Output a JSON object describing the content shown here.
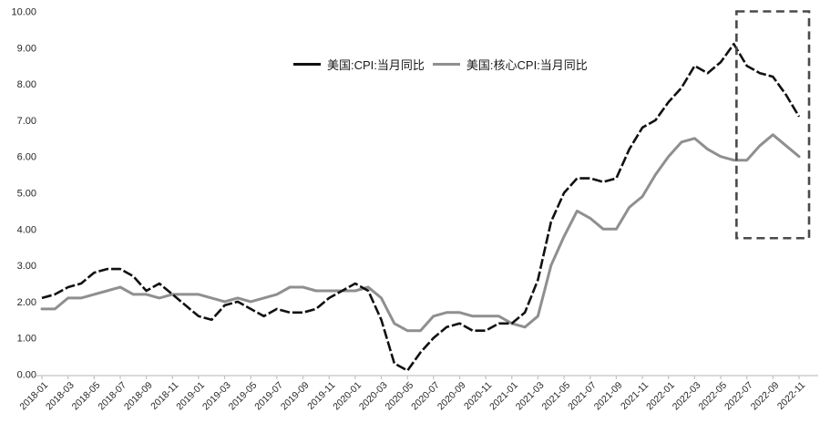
{
  "chart_data": {
    "type": "line",
    "title": "",
    "xlabel": "",
    "ylabel": "",
    "ylim": [
      0,
      10
    ],
    "grid": false,
    "legend_position": "top-center",
    "y_tick_labels": [
      "0.00",
      "1.00",
      "2.00",
      "3.00",
      "4.00",
      "5.00",
      "6.00",
      "7.00",
      "8.00",
      "9.00",
      "10.00"
    ],
    "x_tick_every": 2,
    "x": [
      "2018-01",
      "2018-02",
      "2018-03",
      "2018-04",
      "2018-05",
      "2018-06",
      "2018-07",
      "2018-08",
      "2018-09",
      "2018-10",
      "2018-11",
      "2018-12",
      "2019-01",
      "2019-02",
      "2019-03",
      "2019-04",
      "2019-05",
      "2019-06",
      "2019-07",
      "2019-08",
      "2019-09",
      "2019-10",
      "2019-11",
      "2019-12",
      "2020-01",
      "2020-02",
      "2020-03",
      "2020-04",
      "2020-05",
      "2020-06",
      "2020-07",
      "2020-08",
      "2020-09",
      "2020-10",
      "2020-11",
      "2020-12",
      "2021-01",
      "2021-02",
      "2021-03",
      "2021-04",
      "2021-05",
      "2021-06",
      "2021-07",
      "2021-08",
      "2021-09",
      "2021-10",
      "2021-11",
      "2021-12",
      "2022-01",
      "2022-02",
      "2022-03",
      "2022-04",
      "2022-05",
      "2022-06",
      "2022-07",
      "2022-08",
      "2022-09",
      "2022-10",
      "2022-11"
    ],
    "series": [
      {
        "name": "美国:CPI:当月同比",
        "color": "#111111",
        "line_style": "dense-dash",
        "values": [
          2.1,
          2.2,
          2.4,
          2.5,
          2.8,
          2.9,
          2.9,
          2.7,
          2.3,
          2.5,
          2.2,
          1.9,
          1.6,
          1.5,
          1.9,
          2.0,
          1.8,
          1.6,
          1.8,
          1.7,
          1.7,
          1.8,
          2.1,
          2.3,
          2.5,
          2.3,
          1.5,
          0.3,
          0.1,
          0.6,
          1.0,
          1.3,
          1.4,
          1.2,
          1.2,
          1.4,
          1.4,
          1.7,
          2.6,
          4.2,
          5.0,
          5.4,
          5.4,
          5.3,
          5.4,
          6.2,
          6.8,
          7.0,
          7.5,
          7.9,
          8.5,
          8.3,
          8.6,
          9.1,
          8.5,
          8.3,
          8.2,
          7.7,
          7.1
        ]
      },
      {
        "name": "美国:核心CPI:当月同比",
        "color": "#8f8f8f",
        "line_style": "solid",
        "values": [
          1.8,
          1.8,
          2.1,
          2.1,
          2.2,
          2.3,
          2.4,
          2.2,
          2.2,
          2.1,
          2.2,
          2.2,
          2.2,
          2.1,
          2.0,
          2.1,
          2.0,
          2.1,
          2.2,
          2.4,
          2.4,
          2.3,
          2.3,
          2.3,
          2.3,
          2.4,
          2.1,
          1.4,
          1.2,
          1.2,
          1.6,
          1.7,
          1.7,
          1.6,
          1.6,
          1.6,
          1.4,
          1.3,
          1.6,
          3.0,
          3.8,
          4.5,
          4.3,
          4.0,
          4.0,
          4.6,
          4.9,
          5.5,
          6.0,
          6.4,
          6.5,
          6.2,
          6.0,
          5.9,
          5.9,
          6.3,
          6.6,
          6.3,
          6.0
        ]
      }
    ],
    "annotation": {
      "type": "dashed-box",
      "x_start": "2022-06",
      "x_end": "2022-11",
      "y_min": 3.75,
      "y_max": 10.0,
      "color": "#4a4a4a"
    }
  },
  "colors": {
    "background": "#ffffff",
    "axis_line": "#c3c3c3",
    "tick_label": "#262626"
  }
}
